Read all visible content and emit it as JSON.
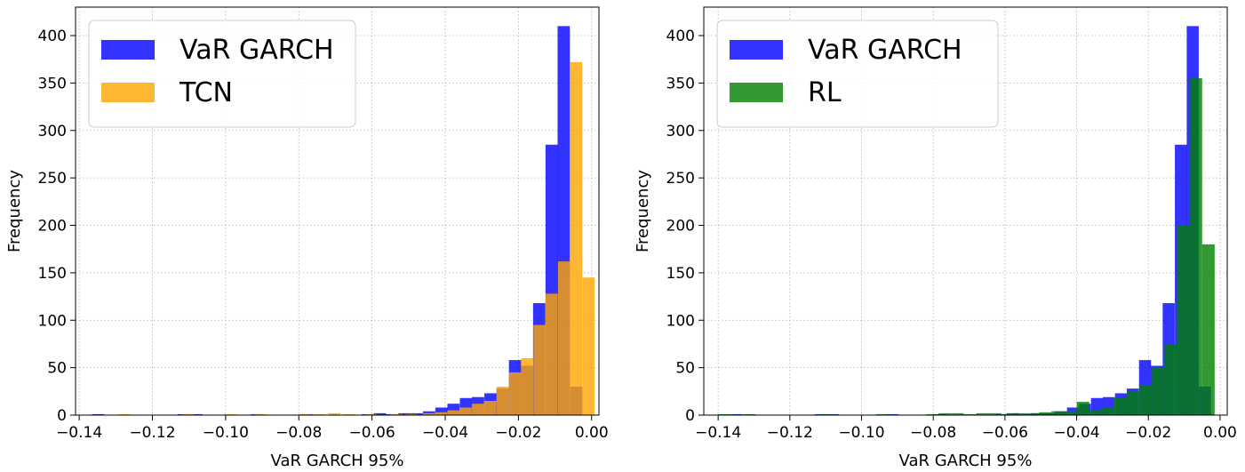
{
  "chart_data": [
    {
      "type": "bar",
      "xlabel": "VaR GARCH 95%",
      "ylabel": "Frequency",
      "xlim": [
        -0.141,
        0.002
      ],
      "ylim": [
        0,
        430
      ],
      "xticks": [
        -0.14,
        -0.12,
        -0.1,
        -0.08,
        -0.06,
        -0.04,
        -0.02,
        0.0
      ],
      "xtick_labels": [
        "−0.14",
        "−0.12",
        "−0.10",
        "−0.08",
        "−0.06",
        "−0.04",
        "−0.02",
        "0.00"
      ],
      "yticks": [
        0,
        50,
        100,
        150,
        200,
        250,
        300,
        350,
        400
      ],
      "grid": true,
      "legend_position": "top-left",
      "series": [
        {
          "name": "VaR GARCH",
          "color": "#0000ff",
          "bin_width": 0.00335,
          "bins": [
            [
              -0.1365,
              1
            ],
            [
              -0.1131,
              1
            ],
            [
              -0.1097,
              1
            ],
            [
              -0.093,
              1
            ],
            [
              -0.0796,
              1
            ],
            [
              -0.0628,
              1
            ],
            [
              -0.0595,
              2
            ],
            [
              -0.0561,
              1
            ],
            [
              -0.0528,
              2
            ],
            [
              -0.0494,
              2
            ],
            [
              -0.0461,
              4
            ],
            [
              -0.0427,
              8
            ],
            [
              -0.0394,
              12
            ],
            [
              -0.036,
              18
            ],
            [
              -0.0327,
              19
            ],
            [
              -0.0293,
              23
            ],
            [
              -0.026,
              28
            ],
            [
              -0.0226,
              58
            ],
            [
              -0.0193,
              52
            ],
            [
              -0.016,
              118
            ],
            [
              -0.0126,
              285
            ],
            [
              -0.0093,
              410
            ],
            [
              -0.0059,
              30
            ]
          ]
        },
        {
          "name": "TCN",
          "color": "#ffa500",
          "bin_width": 0.00335,
          "bins": [
            [
              -0.1294,
              1
            ],
            [
              -0.112,
              1
            ],
            [
              -0.1003,
              1
            ],
            [
              -0.092,
              1
            ],
            [
              -0.08,
              1
            ],
            [
              -0.076,
              1
            ],
            [
              -0.072,
              2
            ],
            [
              -0.068,
              1
            ],
            [
              -0.062,
              1
            ],
            [
              -0.055,
              1
            ],
            [
              -0.051,
              1
            ],
            [
              -0.0462,
              2
            ],
            [
              -0.0428,
              3
            ],
            [
              -0.0394,
              5
            ],
            [
              -0.0361,
              8
            ],
            [
              -0.0327,
              12
            ],
            [
              -0.0294,
              15
            ],
            [
              -0.026,
              30
            ],
            [
              -0.0226,
              45
            ],
            [
              -0.0193,
              60
            ],
            [
              -0.0159,
              95
            ],
            [
              -0.0126,
              128
            ],
            [
              -0.0092,
              162
            ],
            [
              -0.0059,
              372
            ],
            [
              -0.0025,
              145
            ]
          ]
        }
      ]
    },
    {
      "type": "bar",
      "xlabel": "VaR GARCH 95%",
      "ylabel": "Frequency",
      "xlim": [
        -0.144,
        0.002
      ],
      "ylim": [
        0,
        430
      ],
      "xticks": [
        -0.14,
        -0.12,
        -0.1,
        -0.08,
        -0.06,
        -0.04,
        -0.02,
        0.0
      ],
      "xtick_labels": [
        "−0.14",
        "−0.12",
        "−0.10",
        "−0.08",
        "−0.06",
        "−0.04",
        "−0.02",
        "0.00"
      ],
      "yticks": [
        0,
        50,
        100,
        150,
        200,
        250,
        300,
        350,
        400
      ],
      "grid": true,
      "legend_position": "top-left",
      "series": [
        {
          "name": "VaR GARCH",
          "color": "#0000ff",
          "bin_width": 0.00335,
          "bins": [
            [
              -0.1365,
              1
            ],
            [
              -0.1131,
              1
            ],
            [
              -0.1097,
              1
            ],
            [
              -0.093,
              1
            ],
            [
              -0.0796,
              1
            ],
            [
              -0.0628,
              1
            ],
            [
              -0.0595,
              2
            ],
            [
              -0.0561,
              1
            ],
            [
              -0.0528,
              2
            ],
            [
              -0.0494,
              2
            ],
            [
              -0.0461,
              4
            ],
            [
              -0.0427,
              8
            ],
            [
              -0.0394,
              12
            ],
            [
              -0.036,
              18
            ],
            [
              -0.0327,
              19
            ],
            [
              -0.0293,
              23
            ],
            [
              -0.026,
              28
            ],
            [
              -0.0226,
              58
            ],
            [
              -0.0193,
              52
            ],
            [
              -0.016,
              118
            ],
            [
              -0.0126,
              285
            ],
            [
              -0.0093,
              410
            ],
            [
              -0.0059,
              30
            ]
          ]
        },
        {
          "name": "RL",
          "color": "#008000",
          "bin_width": 0.0035,
          "bins": [
            [
              -0.14,
              1
            ],
            [
              -0.133,
              1
            ],
            [
              -0.112,
              1
            ],
            [
              -0.096,
              1
            ],
            [
              -0.082,
              1
            ],
            [
              -0.0785,
              2
            ],
            [
              -0.075,
              2
            ],
            [
              -0.0715,
              1
            ],
            [
              -0.068,
              2
            ],
            [
              -0.0645,
              2
            ],
            [
              -0.061,
              1
            ],
            [
              -0.0575,
              2
            ],
            [
              -0.054,
              2
            ],
            [
              -0.0505,
              3
            ],
            [
              -0.047,
              4
            ],
            [
              -0.0435,
              4
            ],
            [
              -0.04,
              14
            ],
            [
              -0.0365,
              5
            ],
            [
              -0.033,
              8
            ],
            [
              -0.0295,
              18
            ],
            [
              -0.026,
              25
            ],
            [
              -0.0225,
              32
            ],
            [
              -0.019,
              50
            ],
            [
              -0.0155,
              75
            ],
            [
              -0.012,
              200
            ],
            [
              -0.0085,
              355
            ],
            [
              -0.005,
              180
            ]
          ]
        }
      ]
    }
  ]
}
